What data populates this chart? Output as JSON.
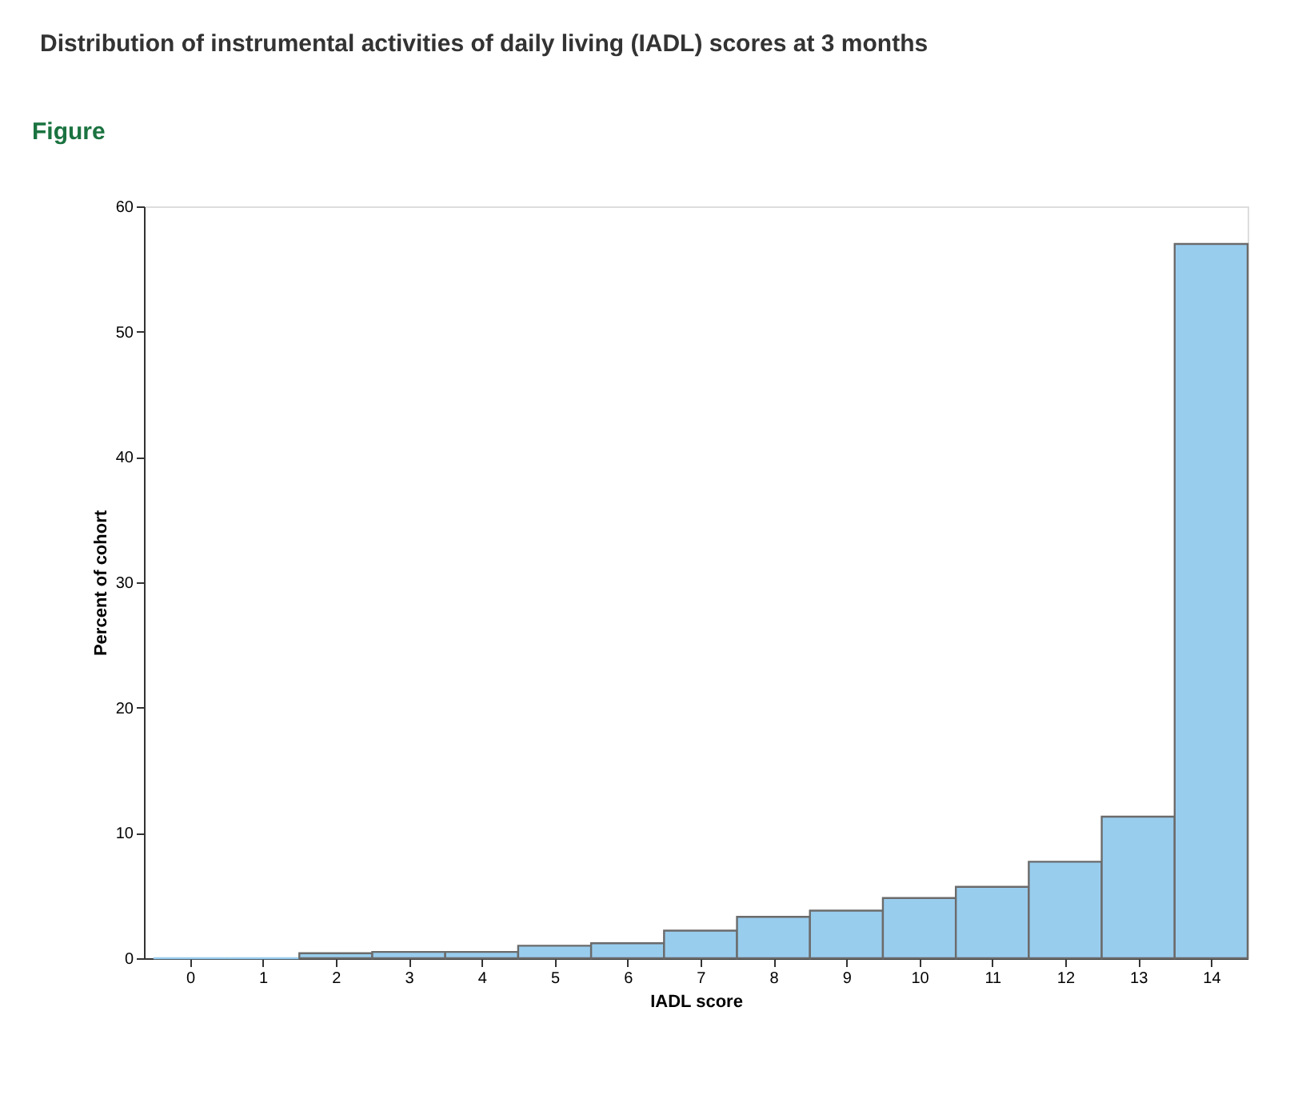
{
  "chart_data": {
    "type": "histogram",
    "title": "Distribution of instrumental activities of daily living (IADL) scores at 3 months",
    "annotations": [
      "Figure"
    ],
    "xlabel": "IADL score",
    "ylabel": "Percent of cohort",
    "bins": [
      -0.5,
      0.5,
      1.5,
      2.5,
      3.5,
      4.5,
      5.5,
      6.5,
      7.5,
      8.5,
      9.5,
      10.5,
      11.5,
      12.5,
      13.5,
      14.5
    ],
    "values": [
      0,
      0,
      0.4,
      0.5,
      0.5,
      1.0,
      1.2,
      2.2,
      3.3,
      3.8,
      4.8,
      5.7,
      7.7,
      11.3,
      57.0
    ],
    "color": "#99cdee",
    "xlim": [
      -0.63,
      14.5
    ],
    "xticks": [
      0,
      1,
      2,
      3,
      4,
      5,
      6,
      7,
      8,
      9,
      10,
      11,
      12,
      13,
      14
    ],
    "ylim": [
      0,
      60
    ],
    "yticks": [
      0,
      10,
      20,
      30,
      40,
      50,
      60
    ],
    "grid": false
  }
}
